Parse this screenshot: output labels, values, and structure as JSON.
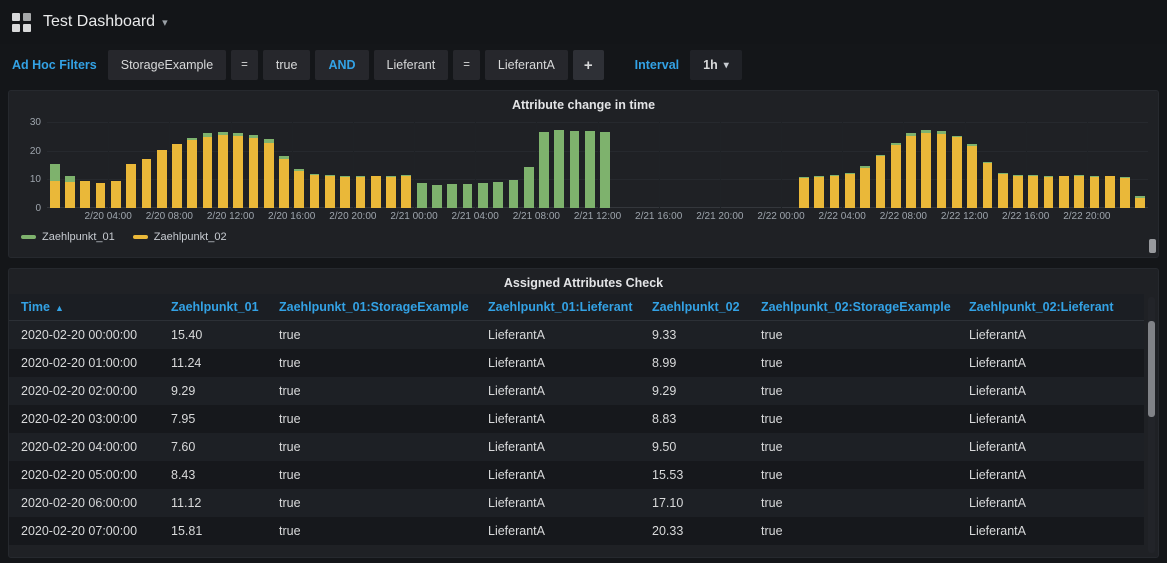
{
  "header": {
    "title": "Test Dashboard"
  },
  "icons": {
    "chevron_down": "▾",
    "plus": "+",
    "sort_asc": "▲"
  },
  "colors": {
    "accent_blue": "#33a2e5",
    "series_green": "#7eb26d",
    "series_yellow": "#eab839"
  },
  "filters": {
    "adhoc_label": "Ad Hoc Filters",
    "chips": [
      {
        "label": "StorageExample"
      },
      {
        "label": "="
      },
      {
        "label": "true"
      },
      {
        "label": "AND"
      },
      {
        "label": "Lieferant"
      },
      {
        "label": "="
      },
      {
        "label": "LieferantA"
      }
    ],
    "interval_label": "Interval",
    "interval_value": "1h"
  },
  "chart_panel": {
    "title": "Attribute change in time"
  },
  "chart_data": {
    "type": "bar",
    "title": "Attribute change in time",
    "xlabel": "",
    "ylabel": "",
    "ylim": [
      0,
      30
    ],
    "y_ticks": [
      0,
      10,
      20,
      30
    ],
    "grid": true,
    "legend_position": "bottom-left",
    "x_unit": "hourly bars from 2/20 00:00 to 2/22 23:00",
    "x_ticks": [
      {
        "i": 4,
        "label": "2/20 04:00"
      },
      {
        "i": 8,
        "label": "2/20 08:00"
      },
      {
        "i": 12,
        "label": "2/20 12:00"
      },
      {
        "i": 16,
        "label": "2/20 16:00"
      },
      {
        "i": 20,
        "label": "2/20 20:00"
      },
      {
        "i": 24,
        "label": "2/21 00:00"
      },
      {
        "i": 28,
        "label": "2/21 04:00"
      },
      {
        "i": 32,
        "label": "2/21 08:00"
      },
      {
        "i": 36,
        "label": "2/21 12:00"
      },
      {
        "i": 40,
        "label": "2/21 16:00"
      },
      {
        "i": 44,
        "label": "2/21 20:00"
      },
      {
        "i": 48,
        "label": "2/22 00:00"
      },
      {
        "i": 52,
        "label": "2/22 04:00"
      },
      {
        "i": 56,
        "label": "2/22 08:00"
      },
      {
        "i": 60,
        "label": "2/22 12:00"
      },
      {
        "i": 64,
        "label": "2/22 16:00"
      },
      {
        "i": 68,
        "label": "2/22 20:00"
      }
    ],
    "series": [
      {
        "name": "Zaehlpunkt_01",
        "color_key": "series_green",
        "values": [
          15.4,
          11.2,
          9.3,
          8.0,
          7.6,
          8.4,
          11.1,
          15.8,
          20.5,
          24.5,
          26.0,
          26.5,
          26.2,
          25.6,
          24.0,
          18.0,
          13.5,
          12.0,
          11.5,
          11.2,
          11.0,
          11.3,
          11.1,
          11.4,
          8.6,
          8.1,
          8.3,
          8.5,
          8.8,
          9.2,
          9.6,
          14.2,
          26.6,
          27.2,
          27.0,
          26.8,
          26.5,
          null,
          null,
          null,
          null,
          null,
          null,
          null,
          null,
          null,
          null,
          null,
          null,
          10.8,
          11.2,
          11.6,
          12.3,
          14.6,
          18.6,
          22.6,
          26.2,
          27.2,
          26.8,
          25.2,
          22.2,
          16.2,
          12.2,
          11.4,
          11.5,
          11.1,
          11.3,
          11.4,
          11.2,
          11.3,
          10.9,
          4.2
        ]
      },
      {
        "name": "Zaehlpunkt_02",
        "color_key": "series_yellow",
        "values": [
          9.3,
          9.0,
          9.3,
          8.8,
          9.5,
          15.5,
          17.1,
          20.3,
          22.4,
          23.9,
          24.8,
          25.3,
          25.0,
          24.4,
          22.8,
          17.2,
          12.9,
          11.6,
          11.2,
          10.9,
          10.7,
          11.0,
          10.8,
          11.1,
          null,
          null,
          null,
          null,
          null,
          null,
          null,
          null,
          null,
          null,
          null,
          null,
          null,
          null,
          null,
          null,
          null,
          null,
          null,
          null,
          null,
          null,
          null,
          null,
          null,
          10.5,
          10.9,
          11.3,
          12.0,
          14.1,
          18.0,
          22.0,
          25.2,
          26.1,
          25.7,
          24.6,
          21.6,
          15.7,
          11.9,
          11.1,
          11.2,
          10.8,
          11.0,
          11.1,
          10.9,
          11.0,
          10.6,
          3.6
        ]
      }
    ]
  },
  "table_panel": {
    "title": "Assigned Attributes Check",
    "sort": {
      "column": "Time",
      "dir": "asc"
    },
    "columns": [
      "Time",
      "Zaehlpunkt_01",
      "Zaehlpunkt_01:StorageExample",
      "Zaehlpunkt_01:Lieferant",
      "Zaehlpunkt_02",
      "Zaehlpunkt_02:StorageExample",
      "Zaehlpunkt_02:Lieferant"
    ],
    "rows": [
      [
        "2020-02-20 00:00:00",
        "15.40",
        "true",
        "LieferantA",
        "9.33",
        "true",
        "LieferantA"
      ],
      [
        "2020-02-20 01:00:00",
        "11.24",
        "true",
        "LieferantA",
        "8.99",
        "true",
        "LieferantA"
      ],
      [
        "2020-02-20 02:00:00",
        "9.29",
        "true",
        "LieferantA",
        "9.29",
        "true",
        "LieferantA"
      ],
      [
        "2020-02-20 03:00:00",
        "7.95",
        "true",
        "LieferantA",
        "8.83",
        "true",
        "LieferantA"
      ],
      [
        "2020-02-20 04:00:00",
        "7.60",
        "true",
        "LieferantA",
        "9.50",
        "true",
        "LieferantA"
      ],
      [
        "2020-02-20 05:00:00",
        "8.43",
        "true",
        "LieferantA",
        "15.53",
        "true",
        "LieferantA"
      ],
      [
        "2020-02-20 06:00:00",
        "11.12",
        "true",
        "LieferantA",
        "17.10",
        "true",
        "LieferantA"
      ],
      [
        "2020-02-20 07:00:00",
        "15.81",
        "true",
        "LieferantA",
        "20.33",
        "true",
        "LieferantA"
      ]
    ]
  }
}
